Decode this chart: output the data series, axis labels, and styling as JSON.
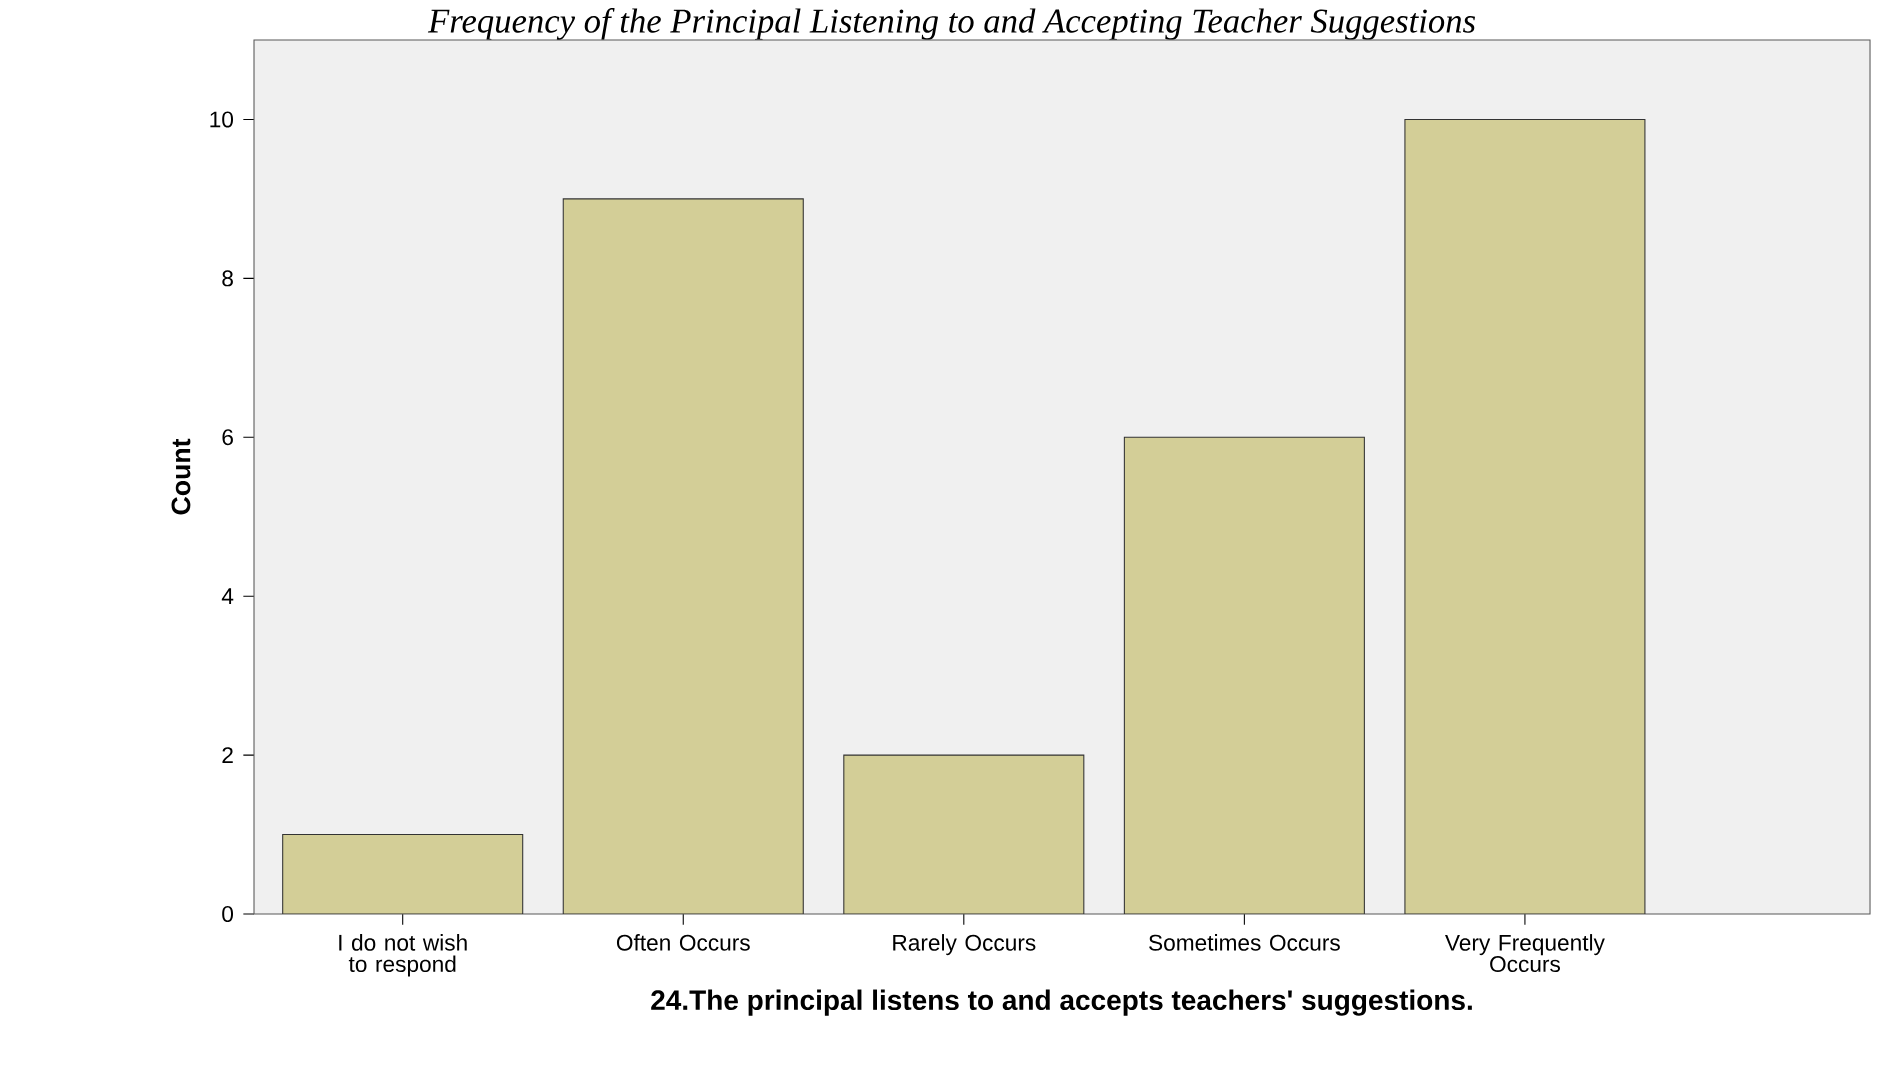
{
  "chart_data": {
    "type": "bar",
    "title": "Frequency of the Principal Listening to and Accepting Teacher Suggestions",
    "xlabel": "24.The principal listens to and accepts teachers' suggestions.",
    "ylabel": "Count",
    "categories": [
      "I do not wish to respond",
      "Often Occurs",
      "Rarely Occurs",
      "Sometimes Occurs",
      "Very Frequently Occurs"
    ],
    "values": [
      1,
      9,
      2,
      6,
      10
    ],
    "color": "#d3ce97",
    "ylim": [
      0,
      11
    ],
    "yticks": [
      0,
      2,
      4,
      6,
      8,
      10
    ],
    "grid": false
  }
}
